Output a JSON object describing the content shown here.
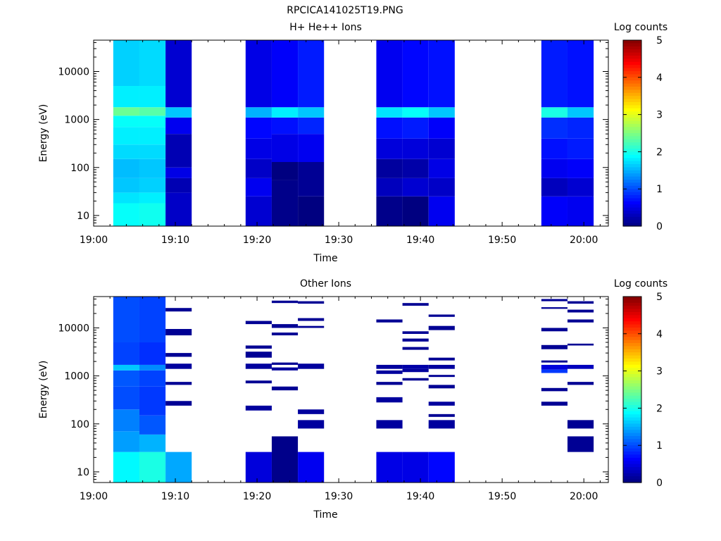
{
  "figure": {
    "title": "RPCICA141025T19.PNG"
  },
  "chart_data": [
    {
      "type": "heatmap",
      "title": "H+ He++ Ions",
      "xlabel": "Time",
      "ylabel": "Energy (eV)",
      "x_ticks": [
        "19:00",
        "19:10",
        "19:20",
        "19:30",
        "19:40",
        "19:50",
        "20:00"
      ],
      "xlim_minutes": [
        0,
        63
      ],
      "y_scale": "log",
      "ylim": [
        6,
        45000
      ],
      "y_ticks": [
        10,
        100,
        1000,
        10000
      ],
      "y_tick_labels": [
        "10",
        "100",
        "1000",
        "10000"
      ],
      "colorbar": {
        "label": "Log counts",
        "range": [
          0,
          5
        ],
        "ticks": [
          "0",
          "1",
          "2",
          "3",
          "4",
          "5"
        ]
      },
      "time_columns_minutes": [
        {
          "start": 2.4,
          "end": 5.6,
          "bands": [
            [
              6,
              18,
              1.9
            ],
            [
              18,
              30,
              1.75
            ],
            [
              30,
              60,
              1.6
            ],
            [
              60,
              150,
              1.55
            ],
            [
              150,
              300,
              1.7
            ],
            [
              300,
              700,
              1.8
            ],
            [
              700,
              1200,
              1.9
            ],
            [
              1200,
              1800,
              2.4
            ],
            [
              1800,
              5000,
              1.8
            ],
            [
              5000,
              45000,
              1.65
            ]
          ]
        },
        {
          "start": 5.6,
          "end": 8.8,
          "bands": [
            [
              6,
              18,
              1.95
            ],
            [
              18,
              30,
              1.8
            ],
            [
              30,
              60,
              1.65
            ],
            [
              60,
              150,
              1.6
            ],
            [
              150,
              300,
              1.7
            ],
            [
              300,
              700,
              1.8
            ],
            [
              700,
              1200,
              1.9
            ],
            [
              1200,
              1800,
              2.3
            ],
            [
              1800,
              5000,
              1.8
            ],
            [
              5000,
              45000,
              1.7
            ]
          ]
        },
        {
          "start": 8.8,
          "end": 12.0,
          "bands": [
            [
              6,
              30,
              0.35
            ],
            [
              30,
              60,
              0.25
            ],
            [
              60,
              100,
              0.5
            ],
            [
              100,
              500,
              0.25
            ],
            [
              500,
              1100,
              0.55
            ],
            [
              1100,
              1800,
              1.6
            ],
            [
              1800,
              45000,
              0.4
            ]
          ]
        },
        {
          "start": 18.6,
          "end": 21.8,
          "bands": [
            [
              6,
              25,
              0.4
            ],
            [
              25,
              60,
              0.55
            ],
            [
              60,
              150,
              0.35
            ],
            [
              150,
              400,
              0.5
            ],
            [
              400,
              1100,
              0.65
            ],
            [
              1100,
              1800,
              1.5
            ],
            [
              1800,
              45000,
              0.5
            ]
          ]
        },
        {
          "start": 21.8,
          "end": 25.0,
          "bands": [
            [
              6,
              55,
              0.05
            ],
            [
              55,
              130,
              0
            ],
            [
              130,
              500,
              0.5
            ],
            [
              500,
              1100,
              0.7
            ],
            [
              1100,
              1800,
              1.8
            ],
            [
              1800,
              45000,
              0.6
            ]
          ]
        },
        {
          "start": 25.0,
          "end": 28.2,
          "bands": [
            [
              6,
              25,
              0
            ],
            [
              25,
              130,
              0.1
            ],
            [
              130,
              500,
              0.55
            ],
            [
              500,
              1100,
              0.8
            ],
            [
              1100,
              1800,
              1.6
            ],
            [
              1800,
              45000,
              0.75
            ]
          ]
        },
        {
          "start": 34.6,
          "end": 37.8,
          "bands": [
            [
              6,
              25,
              0.05
            ],
            [
              25,
              60,
              0.3
            ],
            [
              60,
              150,
              0.15
            ],
            [
              150,
              400,
              0.45
            ],
            [
              400,
              1100,
              0.7
            ],
            [
              1100,
              1800,
              1.75
            ],
            [
              1800,
              45000,
              0.55
            ]
          ]
        },
        {
          "start": 37.8,
          "end": 41.0,
          "bands": [
            [
              6,
              25,
              0
            ],
            [
              25,
              60,
              0.4
            ],
            [
              60,
              150,
              0.2
            ],
            [
              150,
              400,
              0.45
            ],
            [
              400,
              1100,
              0.75
            ],
            [
              1100,
              1800,
              1.9
            ],
            [
              1800,
              45000,
              0.65
            ]
          ]
        },
        {
          "start": 41.0,
          "end": 44.2,
          "bands": [
            [
              6,
              25,
              0.55
            ],
            [
              25,
              60,
              0.35
            ],
            [
              60,
              150,
              0.5
            ],
            [
              150,
              400,
              0.4
            ],
            [
              400,
              1100,
              0.6
            ],
            [
              1100,
              1800,
              1.6
            ],
            [
              1800,
              45000,
              0.7
            ]
          ]
        },
        {
          "start": 54.8,
          "end": 58.0,
          "bands": [
            [
              6,
              25,
              0.6
            ],
            [
              25,
              60,
              0.3
            ],
            [
              60,
              150,
              0.55
            ],
            [
              150,
              400,
              0.7
            ],
            [
              400,
              1100,
              0.85
            ],
            [
              1100,
              1800,
              2.0
            ],
            [
              1800,
              45000,
              0.75
            ]
          ]
        },
        {
          "start": 58.0,
          "end": 61.2,
          "bands": [
            [
              6,
              25,
              0.55
            ],
            [
              25,
              60,
              0.4
            ],
            [
              60,
              150,
              0.6
            ],
            [
              150,
              400,
              0.75
            ],
            [
              400,
              1100,
              0.8
            ],
            [
              1100,
              1800,
              1.6
            ],
            [
              1800,
              45000,
              0.7
            ]
          ]
        }
      ]
    },
    {
      "type": "heatmap",
      "title": "Other Ions",
      "xlabel": "Time",
      "ylabel": "Energy (eV)",
      "x_ticks": [
        "19:00",
        "19:10",
        "19:20",
        "19:30",
        "19:40",
        "19:50",
        "20:00"
      ],
      "xlim_minutes": [
        0,
        63
      ],
      "y_scale": "log",
      "ylim": [
        6,
        45000
      ],
      "y_ticks": [
        10,
        100,
        1000,
        10000
      ],
      "y_tick_labels": [
        "10",
        "100",
        "1000",
        "10000"
      ],
      "colorbar": {
        "label": "Log counts",
        "range": [
          0,
          5
        ],
        "ticks": [
          "0",
          "1",
          "2",
          "3",
          "4",
          "5"
        ]
      },
      "time_columns_minutes": [
        {
          "start": 2.4,
          "end": 5.6,
          "bands": [
            [
              6,
              26,
              1.85
            ],
            [
              26,
              70,
              1.4
            ],
            [
              70,
              200,
              1.25
            ],
            [
              200,
              600,
              1.0
            ],
            [
              600,
              1300,
              1.05
            ],
            [
              1300,
              1700,
              1.6
            ],
            [
              1700,
              5000,
              0.95
            ],
            [
              5000,
              45000,
              1.0
            ]
          ]
        },
        {
          "start": 5.6,
          "end": 8.8,
          "bands": [
            [
              6,
              26,
              2.0
            ],
            [
              26,
              60,
              1.5
            ],
            [
              60,
              150,
              1.05
            ],
            [
              150,
              600,
              0.9
            ],
            [
              600,
              1300,
              0.95
            ],
            [
              1300,
              1700,
              1.3
            ],
            [
              1700,
              5000,
              0.85
            ],
            [
              5000,
              45000,
              0.95
            ]
          ]
        },
        {
          "start": 8.8,
          "end": 12.0,
          "bands": [
            [
              6,
              26,
              1.45
            ],
            [
              240,
              300,
              0.1
            ],
            [
              650,
              750,
              0.1
            ],
            [
              1400,
              1800,
              0.15
            ],
            [
              2500,
              3000,
              0.1
            ],
            [
              7000,
              9500,
              0.1
            ],
            [
              22000,
              26000,
              0.1
            ]
          ]
        },
        {
          "start": 18.6,
          "end": 21.8,
          "bands": [
            [
              6,
              26,
              0.45
            ],
            [
              190,
              240,
              0.15
            ],
            [
              700,
              800,
              0.1
            ],
            [
              1400,
              1800,
              0.15
            ],
            [
              2400,
              3200,
              0.1
            ],
            [
              3700,
              4300,
              0.1
            ],
            [
              12000,
              14000,
              0.1
            ]
          ]
        },
        {
          "start": 21.8,
          "end": 25.0,
          "bands": [
            [
              6,
              55,
              0.05
            ],
            [
              500,
              600,
              0.1
            ],
            [
              1300,
              1500,
              0.15
            ],
            [
              1700,
              1900,
              0.1
            ],
            [
              7000,
              8000,
              0.1
            ],
            [
              10000,
              12000,
              0.1
            ],
            [
              33000,
              37000,
              0.1
            ]
          ]
        },
        {
          "start": 25.0,
          "end": 28.2,
          "bands": [
            [
              6,
              26,
              0.55
            ],
            [
              80,
              120,
              0.15
            ],
            [
              160,
              200,
              0.15
            ],
            [
              1400,
              1800,
              0.15
            ],
            [
              10000,
              11000,
              0.1
            ],
            [
              14000,
              16000,
              0.1
            ],
            [
              32000,
              36000,
              0.1
            ]
          ]
        },
        {
          "start": 34.6,
          "end": 37.8,
          "bands": [
            [
              6,
              26,
              0.5
            ],
            [
              80,
              120,
              0.15
            ],
            [
              280,
              360,
              0.15
            ],
            [
              650,
              750,
              0.1
            ],
            [
              1100,
              1300,
              0.15
            ],
            [
              1400,
              1700,
              0.15
            ],
            [
              13000,
              15000,
              0.1
            ]
          ]
        },
        {
          "start": 37.8,
          "end": 41.0,
          "bands": [
            [
              6,
              26,
              0.5
            ],
            [
              800,
              900,
              0.1
            ],
            [
              1200,
              1400,
              0.15
            ],
            [
              1400,
              1700,
              0.2
            ],
            [
              3500,
              4000,
              0.1
            ],
            [
              5200,
              6000,
              0.1
            ],
            [
              7500,
              8500,
              0.1
            ],
            [
              29000,
              33000,
              0.1
            ]
          ]
        },
        {
          "start": 41.0,
          "end": 44.2,
          "bands": [
            [
              6,
              26,
              0.65
            ],
            [
              80,
              120,
              0.15
            ],
            [
              140,
              160,
              0.1
            ],
            [
              240,
              290,
              0.15
            ],
            [
              550,
              650,
              0.1
            ],
            [
              950,
              1050,
              0.1
            ],
            [
              1400,
              1700,
              0.15
            ],
            [
              2100,
              2400,
              0.1
            ],
            [
              9000,
              11000,
              0.1
            ],
            [
              17000,
              19000,
              0.1
            ]
          ]
        },
        {
          "start": 54.8,
          "end": 58.0,
          "bands": [
            [
              240,
              290,
              0.1
            ],
            [
              480,
              560,
              0.1
            ],
            [
              1150,
              1350,
              0.9
            ],
            [
              1350,
              1700,
              0.45
            ],
            [
              1900,
              2100,
              0.1
            ],
            [
              3600,
              4400,
              0.1
            ],
            [
              8500,
              10000,
              0.1
            ],
            [
              25000,
              27000,
              0.1
            ],
            [
              36000,
              40000,
              0.1
            ]
          ]
        },
        {
          "start": 58.0,
          "end": 61.2,
          "bands": [
            [
              26,
              55,
              0.1
            ],
            [
              80,
              120,
              0.1
            ],
            [
              650,
              750,
              0.1
            ],
            [
              1400,
              1700,
              0.3
            ],
            [
              4300,
              4700,
              0.1
            ],
            [
              13000,
              15000,
              0.1
            ],
            [
              21000,
              24000,
              0.1
            ],
            [
              32000,
              36000,
              0.1
            ]
          ]
        }
      ]
    }
  ]
}
